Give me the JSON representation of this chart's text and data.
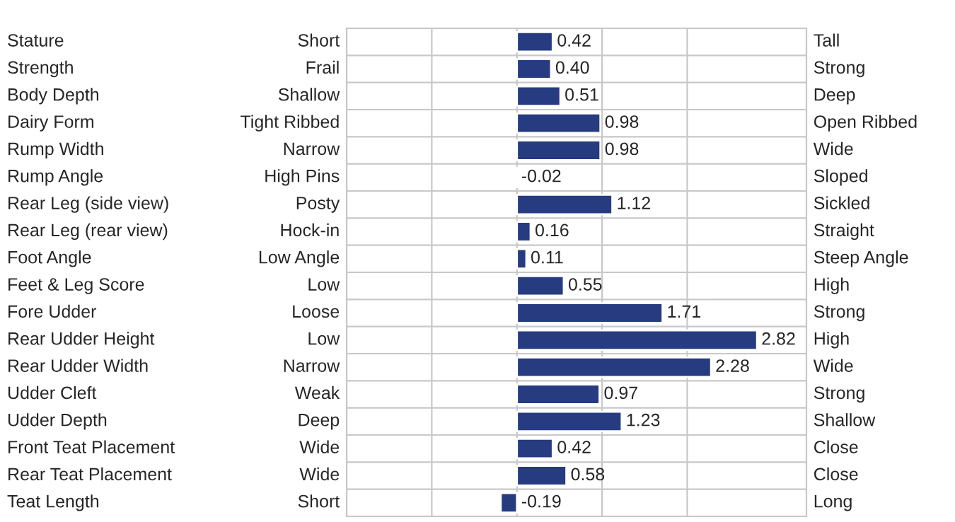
{
  "chart_data": {
    "type": "bar",
    "orientation": "horizontal",
    "categories": [
      "Stature",
      "Strength",
      "Body Depth",
      "Dairy Form",
      "Rump Width",
      "Rump Angle",
      "Rear Leg (side view)",
      "Rear Leg (rear view)",
      "Foot Angle",
      "Feet & Leg Score",
      "Fore Udder",
      "Rear Udder Height",
      "Rear Udder Width",
      "Udder Cleft",
      "Udder Depth",
      "Front Teat Placement",
      "Rear Teat Placement",
      "Teat Length"
    ],
    "values": [
      0.42,
      0.4,
      0.51,
      0.98,
      0.98,
      -0.02,
      1.12,
      0.16,
      0.11,
      0.55,
      1.71,
      2.82,
      2.28,
      0.97,
      1.23,
      0.42,
      0.58,
      -0.19
    ],
    "color": "#263b80",
    "value_labels": [
      "0.42",
      "0.40",
      "0.51",
      "0.98",
      "0.98",
      "-0.02",
      "1.12",
      "0.16",
      "0.11",
      "0.55",
      "1.71",
      "2.82",
      "2.28",
      "0.97",
      "1.23",
      "0.42",
      "0.58",
      "-0.19"
    ],
    "xlim": [
      -2,
      3.4
    ],
    "xticks": [
      {
        "value": -2,
        "label": null
      },
      {
        "value": -1,
        "label": null
      },
      {
        "value": 0,
        "label": null
      },
      {
        "value": 1,
        "label": null
      },
      {
        "value": 2,
        "label": null
      }
    ],
    "grid": "x",
    "legend": false,
    "annotations": [
      "Short",
      "Frail",
      "Shallow",
      "Tight Ribbed",
      "Narrow",
      "High Pins",
      "Posty",
      "Hock-in",
      "Low Angle",
      "Low",
      "Loose",
      "Low",
      "Narrow",
      "Weak",
      "Deep",
      "Wide",
      "Wide",
      "Short",
      "Tall",
      "Strong",
      "Deep",
      "Open Ribbed",
      "Wide",
      "Sloped",
      "Sickled",
      "Straight",
      "Steep Angle",
      "High",
      "Strong",
      "High",
      "Wide",
      "Strong",
      "Shallow",
      "Close",
      "Close",
      "Long"
    ]
  }
}
